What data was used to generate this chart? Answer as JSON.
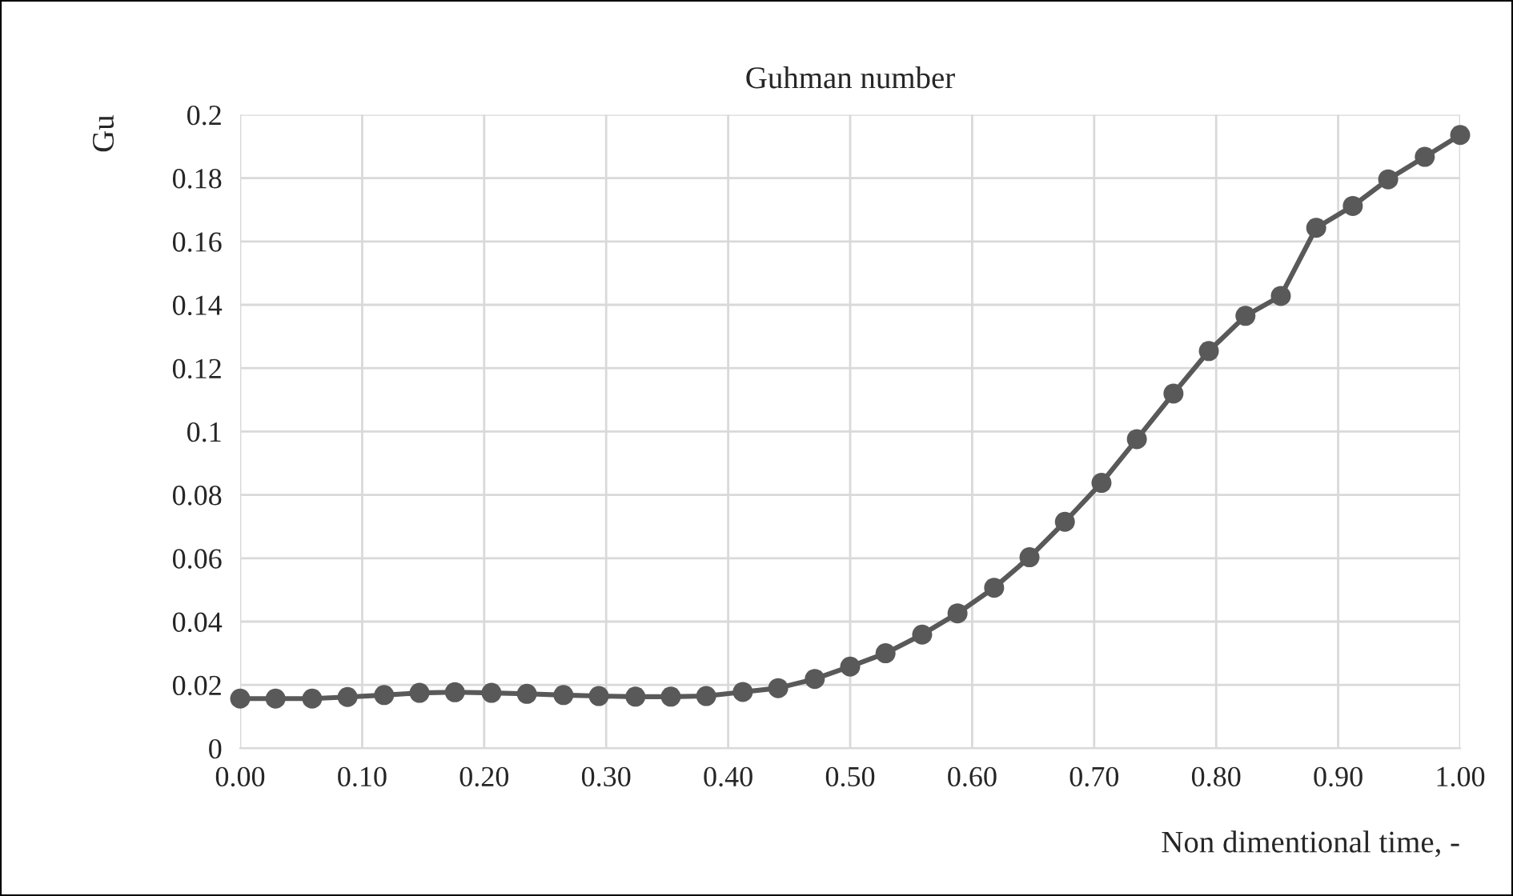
{
  "chart_data": {
    "type": "line",
    "title": "Guhman number",
    "xlabel": "Non dimentional time, -",
    "ylabel": "Gu",
    "series": [
      {
        "color": "#595959",
        "x": [
          0.0,
          0.029,
          0.059,
          0.088,
          0.118,
          0.147,
          0.176,
          0.206,
          0.235,
          0.265,
          0.294,
          0.324,
          0.353,
          0.382,
          0.412,
          0.441,
          0.471,
          0.5,
          0.529,
          0.559,
          0.588,
          0.618,
          0.647,
          0.676,
          0.706,
          0.735,
          0.765,
          0.794,
          0.824,
          0.853,
          0.882,
          0.912,
          0.941,
          0.971,
          1.0
        ],
        "values": [
          0.0157,
          0.0157,
          0.0157,
          0.0162,
          0.0168,
          0.0175,
          0.0177,
          0.0175,
          0.0172,
          0.0168,
          0.0165,
          0.0163,
          0.0163,
          0.0165,
          0.0178,
          0.019,
          0.0219,
          0.0258,
          0.03,
          0.0359,
          0.0426,
          0.0507,
          0.0603,
          0.0715,
          0.0838,
          0.0976,
          0.112,
          0.1254,
          0.1365,
          0.1428,
          0.1643,
          0.1712,
          0.1796,
          0.1867,
          0.1936
        ]
      }
    ],
    "xlim": [
      0,
      1
    ],
    "ylim": [
      0,
      0.2
    ],
    "xticks": [
      {
        "value": 0,
        "label": "0.00"
      },
      {
        "value": 0.1,
        "label": "0.10"
      },
      {
        "value": 0.2,
        "label": "0.20"
      },
      {
        "value": 0.3,
        "label": "0.30"
      },
      {
        "value": 0.4,
        "label": "0.40"
      },
      {
        "value": 0.5,
        "label": "0.50"
      },
      {
        "value": 0.6,
        "label": "0.60"
      },
      {
        "value": 0.7,
        "label": "0.70"
      },
      {
        "value": 0.8,
        "label": "0.80"
      },
      {
        "value": 0.9,
        "label": "0.90"
      },
      {
        "value": 1.0,
        "label": "1.00"
      }
    ],
    "yticks": [
      0,
      0.02,
      0.04,
      0.06,
      0.08,
      0.1,
      0.12,
      0.14,
      0.16,
      0.18,
      0.2
    ],
    "grid": true,
    "marker": "circle",
    "line_style": "solid"
  }
}
